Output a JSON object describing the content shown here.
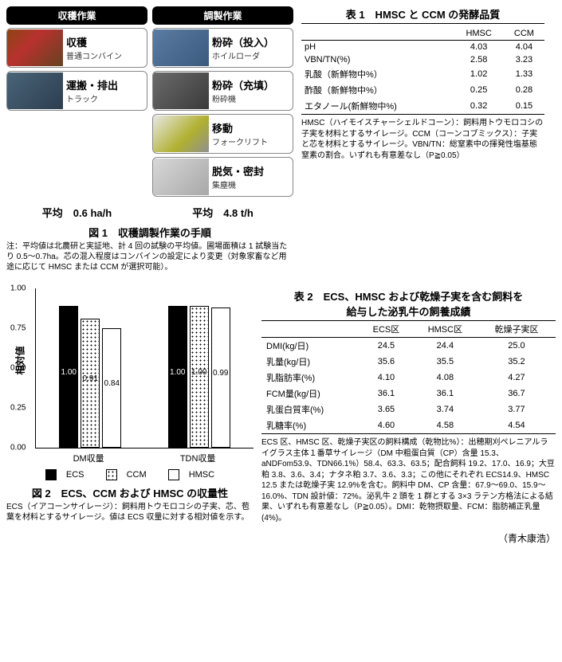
{
  "fig1": {
    "col1_header": "収穫作業",
    "col2_header": "調製作業",
    "col1_steps": [
      {
        "title": "収穫",
        "sub": "普通コンバイン",
        "img": "img-combine"
      },
      {
        "title": "運搬・排出",
        "sub": "トラック",
        "img": "img-truck"
      }
    ],
    "col2_steps": [
      {
        "title": "粉砕（投入）",
        "sub": "ホイルローダ",
        "img": "img-loader"
      },
      {
        "title": "粉砕（充填）",
        "sub": "粉砕機",
        "img": "img-crusher"
      },
      {
        "title": "移動",
        "sub": "フォークリフト",
        "img": "img-fork"
      },
      {
        "title": "脱気・密封",
        "sub": "集塵機",
        "img": "img-seal"
      }
    ],
    "avg1_label": "平均",
    "avg1_val": "0.6 ha/h",
    "avg2_label": "平均",
    "avg2_val": "4.8 t/h",
    "caption": "図 1　収穫調製作業の手順",
    "note": "注：平均値は北農研と実証地、計 4 回の試験の平均値。圃場面積は 1 試験当たり 0.5～0.7ha。芯の混入程度はコンバインの設定により変更（対象家畜など用途に応じて HMSC または CCM が選択可能）。"
  },
  "table1": {
    "title": "表 1　HMSC と CCM の発酵品質",
    "headers": [
      "",
      "HMSC",
      "CCM"
    ],
    "rows": [
      {
        "lab": "pH",
        "v1": "4.03",
        "v2": "4.04"
      },
      {
        "lab": "VBN/TN(%)",
        "v1": "2.58",
        "v2": "3.23"
      },
      {
        "lab": "乳酸（新鮮物中%）",
        "v1": "1.02",
        "v2": "1.33"
      },
      {
        "lab": "酢酸（新鮮物中%）",
        "v1": "0.25",
        "v2": "0.28"
      },
      {
        "lab": "エタノール(新鮮物中%)",
        "v1": "0.32",
        "v2": "0.15"
      }
    ],
    "note": "HMSC（ハイモイスチャーシェルドコーン）：飼料用トウモロコシの子実を材料とするサイレージ。CCM（コーンコブミックス）：子実と芯を材料とするサイレージ。VBN/TN：総窒素中の揮発性塩基態窒素の割合。いずれも有意差なし（P≧0.05）"
  },
  "fig2": {
    "ylabel": "相対値",
    "yticks": [
      {
        "v": "0.00",
        "pos": 0
      },
      {
        "v": "0.25",
        "pos": 25
      },
      {
        "v": "0.50",
        "pos": 50
      },
      {
        "v": "0.75",
        "pos": 75
      },
      {
        "v": "1.00",
        "pos": 100
      }
    ],
    "groups": [
      {
        "label": "DM収量",
        "bars": [
          {
            "cls": "bar-ecs",
            "h": 100,
            "v": "1.00"
          },
          {
            "cls": "bar-ccm",
            "h": 91,
            "v": "0.91"
          },
          {
            "cls": "bar-hmsc",
            "h": 84,
            "v": "0.84"
          }
        ]
      },
      {
        "label": "TDN収量",
        "bars": [
          {
            "cls": "bar-ecs",
            "h": 100,
            "v": "1.00"
          },
          {
            "cls": "bar-ccm",
            "h": 100,
            "v": "1.00"
          },
          {
            "cls": "bar-hmsc",
            "h": 99,
            "v": "0.99"
          }
        ]
      }
    ],
    "legend": [
      "■ECS",
      "▫CCM",
      "□HMSC"
    ],
    "leg_ecs": "ECS",
    "leg_ccm": "CCM",
    "leg_hmsc": "HMSC",
    "caption": "図 2　ECS、CCM および HMSC の収量性",
    "note": "ECS（イアコーンサイレージ）：飼料用トウモロコシの子実、芯、苞葉を材料とするサイレージ。値は ECS 収量に対する相対値を示す。"
  },
  "table2": {
    "title_l1": "表 2　ECS、HMSC および乾燥子実を含む飼料を",
    "title_l2": "給与した泌乳牛の飼養成績",
    "headers": [
      "",
      "ECS区",
      "HMSC区",
      "乾燥子実区"
    ],
    "rows": [
      {
        "lab": "DMI(kg/日)",
        "v1": "24.5",
        "v2": "24.4",
        "v3": "25.0"
      },
      {
        "lab": "乳量(kg/日)",
        "v1": "35.6",
        "v2": "35.5",
        "v3": "35.2"
      },
      {
        "lab": "乳脂肪率(%)",
        "v1": "4.10",
        "v2": "4.08",
        "v3": "4.27"
      },
      {
        "lab": "FCM量(kg/日)",
        "v1": "36.1",
        "v2": "36.1",
        "v3": "36.7"
      },
      {
        "lab": "乳蛋白質率(%)",
        "v1": "3.65",
        "v2": "3.74",
        "v3": "3.77"
      },
      {
        "lab": "乳糖率(%)",
        "v1": "4.60",
        "v2": "4.58",
        "v3": "4.54"
      }
    ],
    "note": "ECS 区、HMSC 区、乾燥子実区の飼料構成（乾物比%）：出穂期刈ペレニアルライグラス主体１番草サイレージ（DM 中粗蛋白質（CP）含量 15.3、aNDFom53.9、TDN66.1%）58.4、63.3、63.5；配合飼料 19.2、17.0、16.9；大豆粕 3.8、3.6、3.4；ナタネ粕 3.7、3.6、3.3；この他にそれぞれ ECS14.9、HMSC 12.5 または乾燥子実 12.9%を含む。飼料中 DM、CP 含量：67.9～69.0、15.9～16.0%、TDN 設計値：72%。泌乳牛 2 頭を 1 群とする 3×3 ラテン方格法による結果、いずれも有意差なし（P≧0.05）。DMI：乾物摂取量、FCM：脂肪補正乳量(4%)。"
  },
  "author": "（青木康浩）"
}
